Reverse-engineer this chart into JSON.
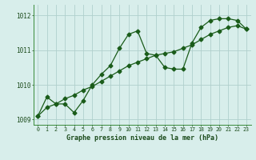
{
  "line1_x": [
    0,
    1,
    2,
    3,
    4,
    5,
    6,
    7,
    8,
    9,
    10,
    11,
    12,
    13,
    14,
    15,
    16,
    17,
    18,
    19,
    20,
    21,
    22,
    23
  ],
  "line1_y": [
    1009.1,
    1009.65,
    1009.45,
    1009.45,
    1009.2,
    1009.55,
    1010.0,
    1010.3,
    1010.55,
    1011.05,
    1011.45,
    1011.55,
    1010.9,
    1010.85,
    1010.5,
    1010.45,
    1010.45,
    1011.2,
    1011.65,
    1011.85,
    1011.9,
    1011.9,
    1011.85,
    1011.6
  ],
  "line2_x": [
    0,
    1,
    2,
    3,
    4,
    5,
    6,
    7,
    8,
    9,
    10,
    11,
    12,
    13,
    14,
    15,
    16,
    17,
    18,
    19,
    20,
    21,
    22,
    23
  ],
  "line2_y": [
    1009.1,
    1009.35,
    1009.45,
    1009.6,
    1009.7,
    1009.85,
    1009.95,
    1010.1,
    1010.25,
    1010.4,
    1010.55,
    1010.65,
    1010.75,
    1010.85,
    1010.9,
    1010.95,
    1011.05,
    1011.15,
    1011.3,
    1011.45,
    1011.55,
    1011.65,
    1011.7,
    1011.6
  ],
  "bg_color": "#d8eeeb",
  "line_color": "#1a5c1a",
  "grid_color": "#b0d0cc",
  "xlabel": "Graphe pression niveau de la mer (hPa)",
  "ylim": [
    1008.85,
    1012.3
  ],
  "xlim": [
    -0.5,
    23.5
  ],
  "yticks": [
    1009,
    1010,
    1011,
    1012
  ],
  "xticks": [
    0,
    1,
    2,
    3,
    4,
    5,
    6,
    7,
    8,
    9,
    10,
    11,
    12,
    13,
    14,
    15,
    16,
    17,
    18,
    19,
    20,
    21,
    22,
    23
  ]
}
